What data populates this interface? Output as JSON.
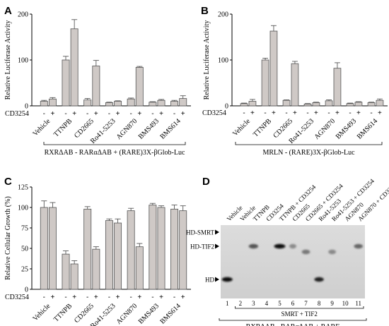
{
  "chart_data": [
    {
      "panel": "A",
      "type": "bar",
      "ylabel": "Relative Luciferase Activity",
      "ylim": [
        0,
        200
      ],
      "yticks": [
        0,
        100,
        200
      ],
      "categories": [
        "Vehicle",
        "TTNPB",
        "CD2665",
        "Ro41-5253",
        "AGN870",
        "BMS493",
        "BMS614"
      ],
      "condition_label": "CD3254",
      "condition_signs": [
        "-",
        "+"
      ],
      "series": [
        {
          "condition": "-",
          "values": [
            10,
            100,
            13,
            7,
            15,
            8,
            10
          ],
          "errors": [
            2,
            8,
            3,
            1,
            2,
            1,
            2
          ]
        },
        {
          "condition": "+",
          "values": [
            15,
            168,
            87,
            10,
            84,
            12,
            16
          ],
          "errors": [
            3,
            20,
            12,
            1,
            2,
            2,
            6
          ]
        }
      ],
      "caption": "RXRΔAB - RARαΔAB + (RARE)3X-βGlob-Luc"
    },
    {
      "panel": "B",
      "type": "bar",
      "ylabel": "Relative Luciferase Activity",
      "ylim": [
        0,
        200
      ],
      "yticks": [
        0,
        100,
        200
      ],
      "categories": [
        "Vehicle",
        "TTNPB",
        "CD2665",
        "Ro41-5253",
        "AGN870",
        "BMS493",
        "BMS614"
      ],
      "condition_label": "CD3254",
      "condition_signs": [
        "-",
        "+"
      ],
      "series": [
        {
          "condition": "-",
          "values": [
            5,
            100,
            12,
            4,
            11,
            5,
            7
          ],
          "errors": [
            1,
            4,
            1,
            1,
            2,
            1,
            1
          ]
        },
        {
          "condition": "+",
          "values": [
            10,
            163,
            92,
            7,
            82,
            8,
            12
          ],
          "errors": [
            4,
            12,
            5,
            1,
            12,
            1,
            3
          ]
        }
      ],
      "caption": "MRLN - (RARE)3X-βGlob-Luc"
    },
    {
      "panel": "C",
      "type": "bar",
      "ylabel": "Relative Cellular Growth (%)",
      "ylim": [
        0,
        125
      ],
      "yticks": [
        0,
        25,
        50,
        75,
        100,
        125
      ],
      "categories": [
        "Vehicle",
        "TTNPB",
        "CD2665",
        "Ro41-5253",
        "AGN870",
        "BMS493",
        "BMS614"
      ],
      "condition_label": "CD3254",
      "condition_signs": [
        "-",
        "+"
      ],
      "series": [
        {
          "condition": "-",
          "values": [
            100,
            43,
            98,
            84,
            96,
            103,
            98
          ],
          "errors": [
            8,
            4,
            3,
            2,
            3,
            2,
            5
          ]
        },
        {
          "condition": "+",
          "values": [
            100,
            31,
            49,
            81,
            52,
            100,
            96
          ],
          "errors": [
            6,
            4,
            3,
            5,
            4,
            2,
            6
          ]
        }
      ]
    },
    {
      "panel": "D",
      "type": "gel",
      "lane_labels": [
        "Vehicle",
        "Vehicle",
        "TTNPB",
        "CD3254",
        "TTNPB + CD3254",
        "CD2665",
        "CD2665 + CD3254",
        "Ro41-5253",
        "Ro41-5253 + CD3254",
        "AGN870",
        "AGN870 + CD3254"
      ],
      "lane_numbers": [
        "1",
        "2",
        "3",
        "4",
        "5",
        "6",
        "7",
        "8",
        "9",
        "10",
        "11"
      ],
      "band_labels": [
        "HD-SMRT",
        "HD-TIF2",
        "HD"
      ],
      "bracket_label": "SMRT + TIF2",
      "caption": "RXRΔAB - RARαΔAB + RARE"
    }
  ]
}
